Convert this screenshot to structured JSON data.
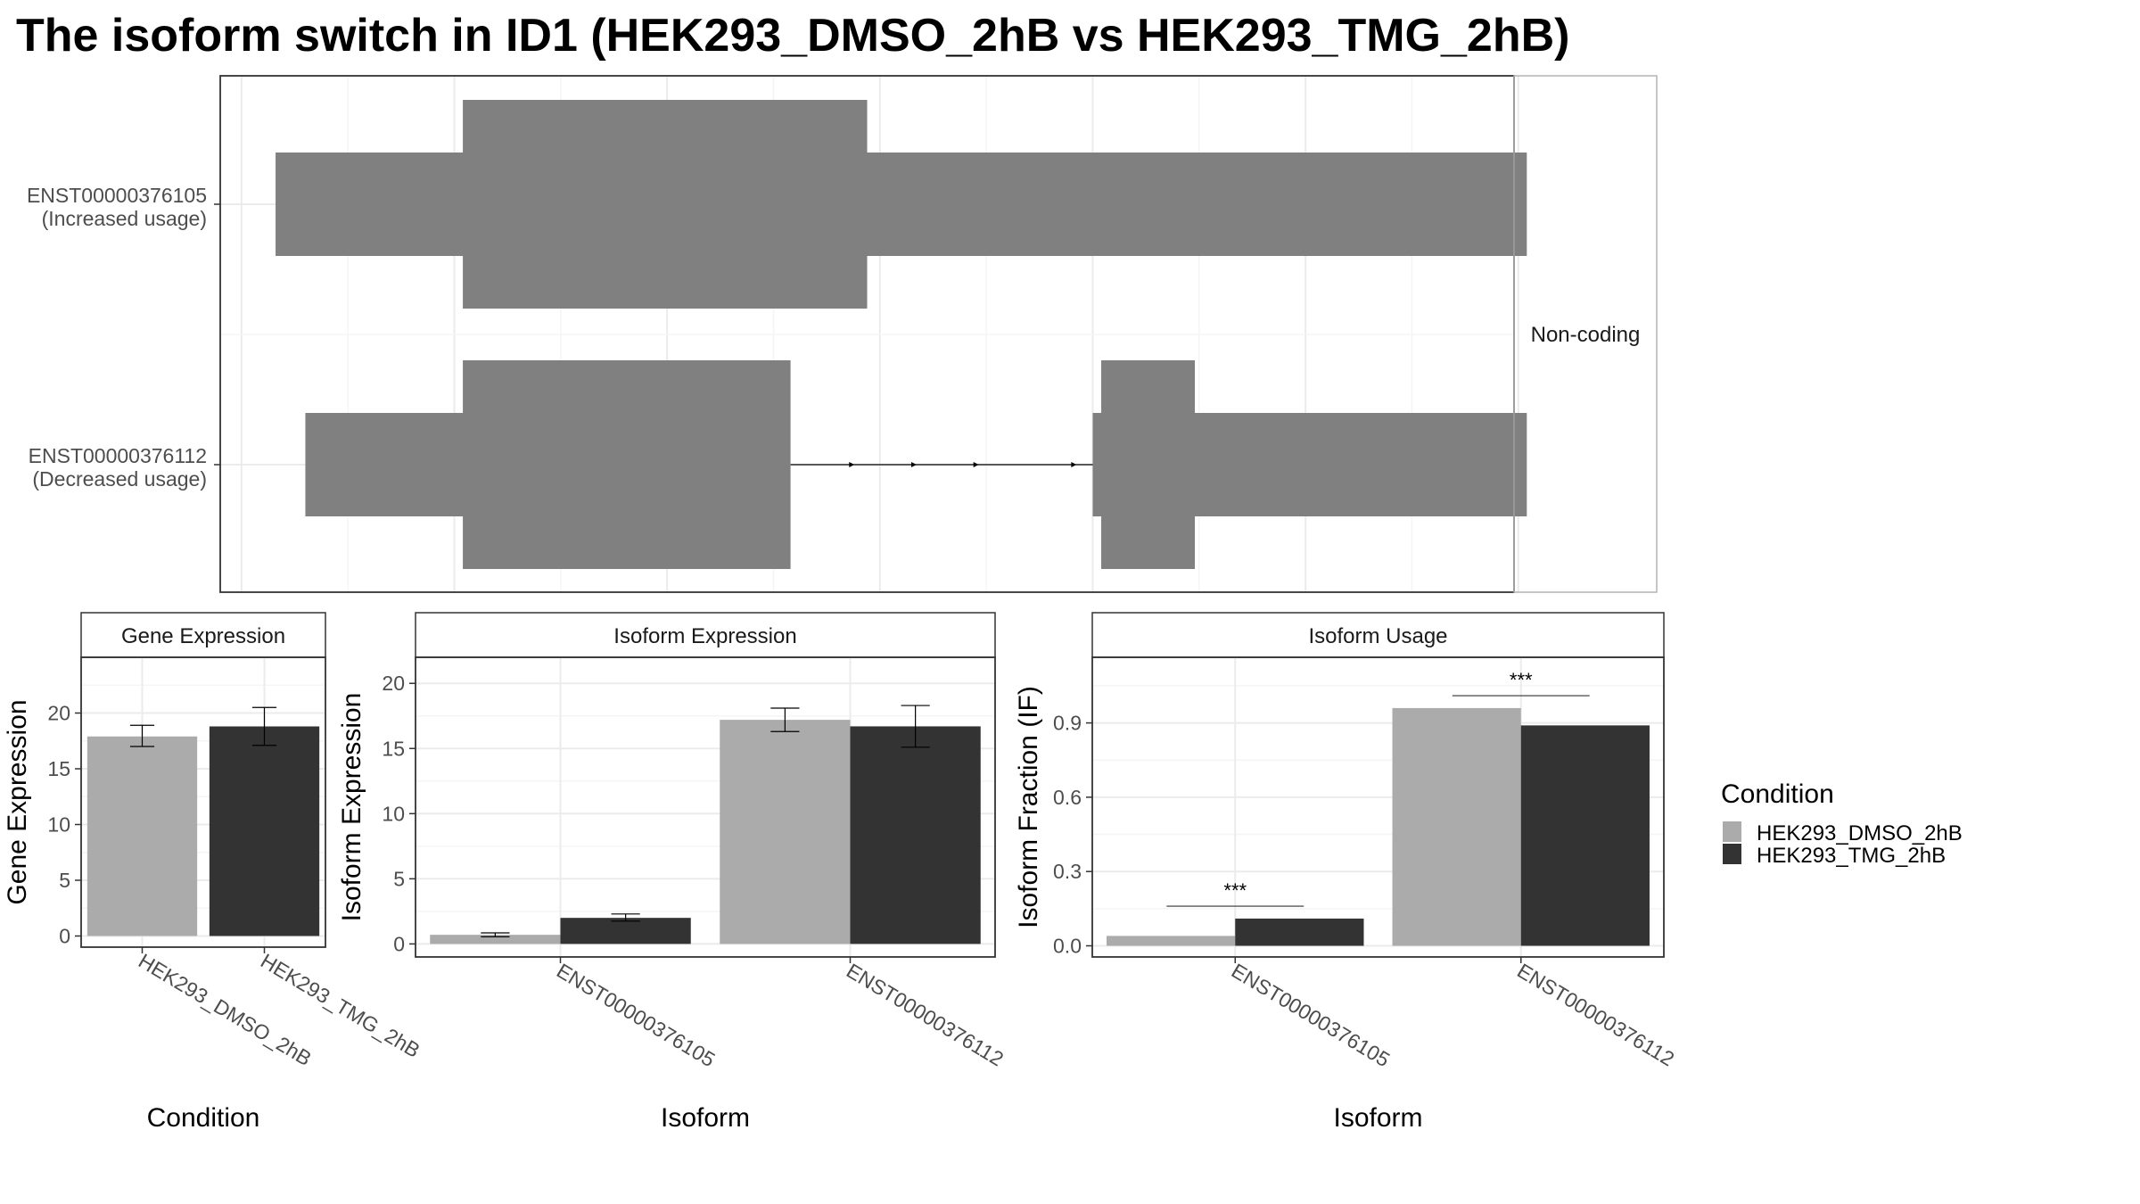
{
  "title": "The isoform switch in ID1 (HEK293_DMSO_2hB vs HEK293_TMG_2hB)",
  "colors": {
    "dmso": "#ababab",
    "tmg": "#333333",
    "transcript": "#808080",
    "grid": "#ebebeb",
    "panel_border": "#333333",
    "strip_border": "#b3b3b3"
  },
  "chart_data": [
    {
      "id": "transcripts",
      "type": "gene-structure",
      "strip_label": "Non-coding",
      "transcripts": [
        {
          "name": "ENST00000376105",
          "usage": "(Increased usage)",
          "utr_blocks": [
            [
              0.03,
              2.97
            ]
          ],
          "cds_blocks": [
            [
              0.47,
              1.42
            ]
          ],
          "introns": []
        },
        {
          "name": "ENST00000376112",
          "usage": "(Decreased usage)",
          "utr_blocks": [
            [
              0.1,
              1.22
            ],
            [
              1.95,
              2.97
            ]
          ],
          "cds_blocks": [
            [
              0.47,
              1.24
            ],
            [
              1.97,
              2.19
            ]
          ],
          "introns": [
            [
              1.24,
              1.97
            ]
          ]
        }
      ]
    },
    {
      "id": "gene-expression",
      "type": "bar",
      "strip_title": "Gene Expression",
      "xlabel": "Condition",
      "ylabel": "Gene Expression",
      "ylim": [
        -1,
        25
      ],
      "yticks": [
        0,
        5,
        10,
        15,
        20
      ],
      "categories": [
        "HEK293_DMSO_2hB",
        "HEK293_TMG_2hB"
      ],
      "values": [
        17.9,
        18.8
      ],
      "errors": [
        [
          17.0,
          18.9
        ],
        [
          17.1,
          20.5
        ]
      ]
    },
    {
      "id": "isoform-expression",
      "type": "bar",
      "strip_title": "Isoform Expression",
      "xlabel": "Isoform",
      "ylabel": "Isoform Expression",
      "ylim": [
        -1,
        22
      ],
      "yticks": [
        0,
        5,
        10,
        15,
        20
      ],
      "categories": [
        "ENST00000376105",
        "ENST00000376112"
      ],
      "series": [
        {
          "name": "HEK293_DMSO_2hB",
          "values": [
            0.7,
            17.2
          ],
          "errors": [
            [
              0.55,
              0.85
            ],
            [
              16.3,
              18.1
            ]
          ]
        },
        {
          "name": "HEK293_TMG_2hB",
          "values": [
            2.0,
            16.7
          ],
          "errors": [
            [
              1.75,
              2.3
            ],
            [
              15.1,
              18.3
            ]
          ]
        }
      ]
    },
    {
      "id": "isoform-usage",
      "type": "bar",
      "strip_title": "Isoform Usage",
      "xlabel": "Isoform",
      "ylabel": "Isoform Fraction (IF)",
      "ylim": [
        -0.045,
        1.165
      ],
      "yticks": [
        "0.0",
        "0.3",
        "0.6",
        "0.9"
      ],
      "categories": [
        "ENST00000376105",
        "ENST00000376112"
      ],
      "series": [
        {
          "name": "HEK293_DMSO_2hB",
          "values": [
            0.04,
            0.96
          ]
        },
        {
          "name": "HEK293_TMG_2hB",
          "values": [
            0.11,
            0.89
          ]
        }
      ],
      "significance": [
        "***",
        "***"
      ],
      "sig_levels": [
        0.16,
        1.01
      ]
    }
  ],
  "legend": {
    "title": "Condition",
    "items": [
      "HEK293_DMSO_2hB",
      "HEK293_TMG_2hB"
    ]
  }
}
